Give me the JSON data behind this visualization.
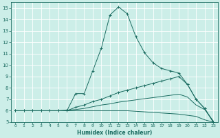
{
  "xlabel": "Humidex (Indice chaleur)",
  "bg_color": "#cceee8",
  "grid_color": "#ffffff",
  "line_color": "#1a6b60",
  "xlim": [
    -0.5,
    23.5
  ],
  "ylim": [
    5,
    15.5
  ],
  "yticks": [
    5,
    6,
    7,
    8,
    9,
    10,
    11,
    12,
    13,
    14,
    15
  ],
  "xticks": [
    0,
    1,
    2,
    3,
    4,
    5,
    6,
    7,
    8,
    9,
    10,
    11,
    12,
    13,
    14,
    15,
    16,
    17,
    18,
    19,
    20,
    21,
    22,
    23
  ],
  "lines": [
    {
      "x": [
        0,
        1,
        2,
        3,
        4,
        5,
        6,
        7,
        8,
        9,
        10,
        11,
        12,
        13,
        14,
        15,
        16,
        17,
        18,
        19,
        20,
        21,
        22,
        23
      ],
      "y": [
        6.0,
        6.0,
        6.0,
        6.0,
        6.0,
        6.0,
        6.0,
        7.5,
        7.5,
        9.5,
        11.5,
        14.4,
        15.1,
        14.5,
        12.5,
        11.1,
        10.2,
        9.7,
        9.5,
        9.3,
        8.3,
        7.0,
        6.2,
        5.0
      ],
      "marker": true,
      "linestyle": "-"
    },
    {
      "x": [
        0,
        1,
        2,
        3,
        4,
        5,
        6,
        7,
        8,
        9,
        10,
        11,
        12,
        13,
        14,
        15,
        16,
        17,
        18,
        19,
        20,
        21,
        22,
        23
      ],
      "y": [
        6.0,
        6.0,
        6.0,
        6.0,
        6.0,
        6.0,
        6.0,
        6.3,
        6.5,
        6.8,
        7.0,
        7.3,
        7.6,
        7.8,
        8.0,
        8.2,
        8.4,
        8.6,
        8.8,
        9.0,
        8.3,
        7.0,
        6.2,
        5.0
      ],
      "marker": true,
      "linestyle": "-"
    },
    {
      "x": [
        0,
        1,
        2,
        3,
        4,
        5,
        6,
        7,
        8,
        9,
        10,
        11,
        12,
        13,
        14,
        15,
        16,
        17,
        18,
        19,
        20,
        21,
        22,
        23
      ],
      "y": [
        6.0,
        6.0,
        6.0,
        6.0,
        6.0,
        6.0,
        6.05,
        6.1,
        6.2,
        6.35,
        6.5,
        6.6,
        6.75,
        6.85,
        6.95,
        7.05,
        7.15,
        7.25,
        7.35,
        7.45,
        7.2,
        6.5,
        6.1,
        5.1
      ],
      "marker": false,
      "linestyle": "-"
    },
    {
      "x": [
        0,
        1,
        2,
        3,
        4,
        5,
        6,
        7,
        8,
        9,
        10,
        11,
        12,
        13,
        14,
        15,
        16,
        17,
        18,
        19,
        20,
        21,
        22,
        23
      ],
      "y": [
        6.0,
        6.0,
        6.0,
        6.0,
        6.0,
        6.0,
        6.0,
        6.0,
        6.0,
        6.0,
        6.0,
        6.0,
        6.0,
        6.0,
        5.95,
        5.9,
        5.85,
        5.8,
        5.75,
        5.7,
        5.6,
        5.5,
        5.2,
        5.0
      ],
      "marker": false,
      "linestyle": "-"
    }
  ]
}
